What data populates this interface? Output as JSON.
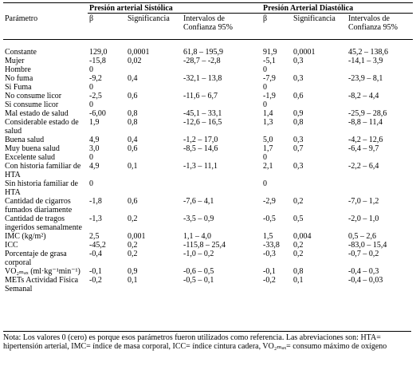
{
  "table": {
    "header": {
      "systolic": "Presión arterial Sistólica",
      "diastolic": "Presión Arterial Diastólica"
    },
    "columns": [
      "Parámetro",
      "β",
      "Significancia",
      "Intervalos de Confianza 95%",
      "β",
      "Significancia",
      "Intervalos de Confianza 95%"
    ],
    "rows": [
      {
        "label": "Constante",
        "s": {
          "beta": "129,0",
          "sig": "0,0001",
          "ci": "61,8 – 195,9"
        },
        "d": {
          "beta": "91,9",
          "sig": "0,0001",
          "ci": "45,2 – 138,6"
        }
      },
      {
        "label": "Mujer",
        "s": {
          "beta": "-15,8",
          "sig": "0,02",
          "ci": "-28,7 – -2,8"
        },
        "d": {
          "beta": "-5,1",
          "sig": "0,3",
          "ci": "-14,1 – 3,9"
        }
      },
      {
        "label": "Hombre",
        "s": {
          "beta": "0"
        },
        "d": {
          "beta": "0"
        }
      },
      {
        "label": "No fuma",
        "s": {
          "beta": "-9,2",
          "sig": "0,4",
          "ci": "-32,1 – 13,8"
        },
        "d": {
          "beta": "-7,9",
          "sig": "0,3",
          "ci": "-23,9 – 8,1"
        }
      },
      {
        "label": "Si Fuma",
        "s": {
          "beta": "0"
        },
        "d": {
          "beta": "0"
        }
      },
      {
        "label": "No consume licor",
        "s": {
          "beta": "-2,5",
          "sig": "0,6",
          "ci": "-11,6 – 6,7"
        },
        "d": {
          "beta": "-1,9",
          "sig": "0,6",
          "ci": "-8,2 – 4,4"
        }
      },
      {
        "label": "Si consume licor",
        "s": {
          "beta": "0"
        },
        "d": {
          "beta": "0"
        }
      },
      {
        "label": "Mal estado de salud",
        "s": {
          "beta": "-6,00",
          "sig": "0,8",
          "ci": "-45,1 – 33,1"
        },
        "d": {
          "beta": "1,4",
          "sig": "0,9",
          "ci": "-25,9 – 28,6"
        }
      },
      {
        "label": "Considerable estado de salud",
        "s": {
          "beta": "1,9",
          "sig": "0,8",
          "ci": "-12,6 – 16,5"
        },
        "d": {
          "beta": "1,3",
          "sig": "0,8",
          "ci": "-8,8 – 11,4"
        }
      },
      {
        "label": "Buena salud",
        "s": {
          "beta": "4,9",
          "sig": "0,4",
          "ci": "-1,2 – 17,0"
        },
        "d": {
          "beta": "5,0",
          "sig": "0,3",
          "ci": "-4,2 – 12,6"
        }
      },
      {
        "label": "Muy buena salud",
        "s": {
          "beta": "3,0",
          "sig": "0,6",
          "ci": "-8,5 – 14,6"
        },
        "d": {
          "beta": "1,7",
          "sig": "0,7",
          "ci": "-6,4 – 9,7"
        }
      },
      {
        "label": "Excelente salud",
        "s": {
          "beta": "0"
        },
        "d": {
          "beta": "0"
        }
      },
      {
        "label": "Con historia familiar de HTA",
        "s": {
          "beta": "4,9",
          "sig": "0,1",
          "ci": "-1,3 – 11,1"
        },
        "d": {
          "beta": "2,1",
          "sig": "0,3",
          "ci": "-2,2 – 6,4"
        }
      },
      {
        "label": "Sin historia familiar de HTA",
        "s": {
          "beta": "0"
        },
        "d": {
          "beta": "0"
        }
      },
      {
        "label": "Cantidad de cigarros fumados diariamente",
        "s": {
          "beta": "-1,8",
          "sig": "0,6",
          "ci": "-7,6 – 4,1"
        },
        "d": {
          "beta": "-2,9",
          "sig": "0,2",
          "ci": "-7,0 – 1,2"
        }
      },
      {
        "label": "Cantidad de tragos ingeridos semanalmente",
        "s": {
          "beta": "-1,3",
          "sig": "0,2",
          "ci": "-3,5 – 0,9"
        },
        "d": {
          "beta": "-0,5",
          "sig": "0,5",
          "ci": "-2,0 – 1,0"
        }
      },
      {
        "label": "IMC (kg/m²)",
        "s": {
          "beta": "2,5",
          "sig": "0,001",
          "ci": "1,1 – 4,0"
        },
        "d": {
          "beta": "1,5",
          "sig": "0,004",
          "ci": "0,5 – 2,6"
        }
      },
      {
        "label": "ICC",
        "s": {
          "beta": "-45,2",
          "sig": "0,2",
          "ci": "-115,8 – 25,4"
        },
        "d": {
          "beta": "-33,8",
          "sig": "0,2",
          "ci": "-83,0 – 15,4"
        }
      },
      {
        "label": "Porcentaje de grasa corporal",
        "s": {
          "beta": "-0,4",
          "sig": "0,2",
          "ci": "-1,0 – 0,2"
        },
        "d": {
          "beta": "-0,3",
          "sig": "0,2",
          "ci": "-0,7 – 0,2"
        }
      },
      {
        "label": "VO₂ₘₐₓ (ml·kg⁻¹min⁻¹)",
        "s": {
          "beta": "-0,1",
          "sig": "0,9",
          "ci": "-0,6 – 0,5"
        },
        "d": {
          "beta": "-0,1",
          "sig": "0,8",
          "ci": "-0,4 – 0,3"
        }
      },
      {
        "label": "METs Actividad Física Semanal",
        "s": {
          "beta": "-0,2",
          "sig": "0,1",
          "ci": "-0,5 – 0,1"
        },
        "d": {
          "beta": "-0,2",
          "sig": "0,1",
          "ci": "-0,4 – 0,03"
        }
      }
    ],
    "note": "Nota: Los valores 0 (cero) es porque esos parámetros fueron utilizados como referencia. Las abreviaciones son: HTA= hipertensión arterial, IMC= índice de masa corporal, ICC= índice cintura cadera, VO₂ₘₐₓ= consumo máximo de oxígeno"
  }
}
